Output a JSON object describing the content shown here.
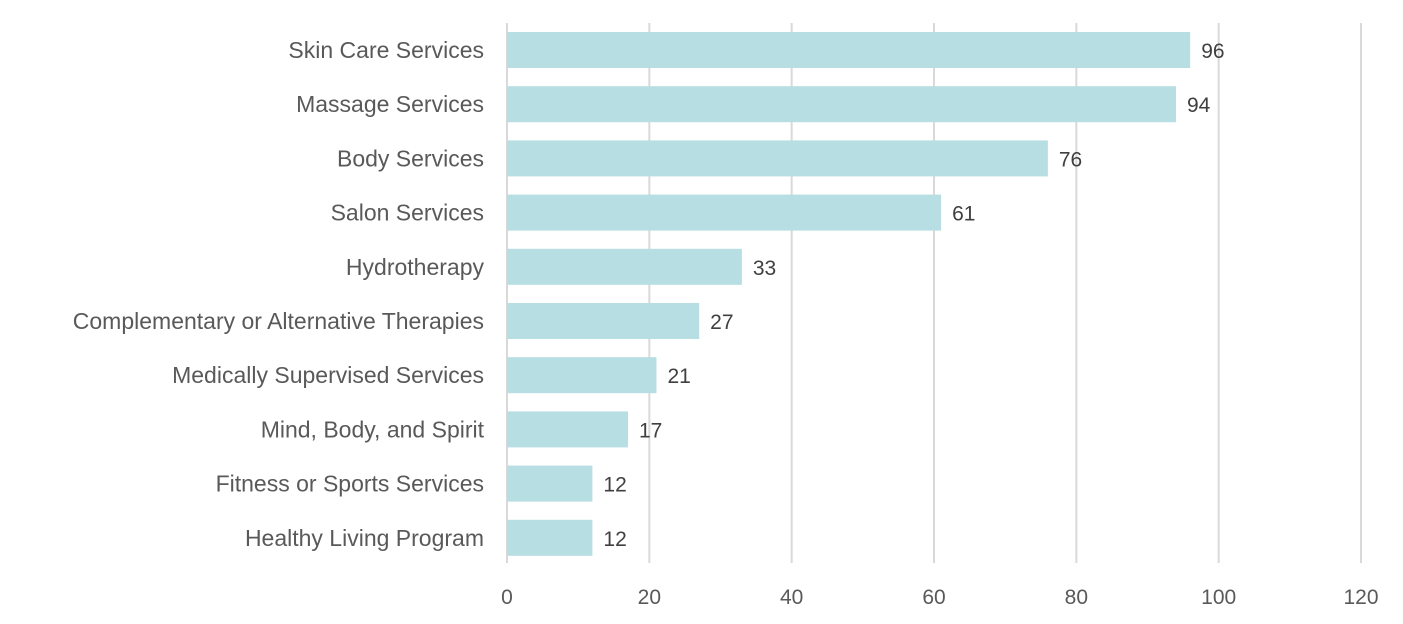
{
  "chart_data": {
    "type": "bar",
    "orientation": "horizontal",
    "title": "",
    "xlabel": "",
    "ylabel": "",
    "categories": [
      "Skin Care Services",
      "Massage Services",
      "Body Services",
      "Salon Services",
      "Hydrotherapy",
      "Complementary or Alternative Therapies",
      "Medically Supervised Services",
      "Mind, Body, and Spirit",
      "Fitness or Sports Services",
      "Healthy Living Program"
    ],
    "values": [
      96,
      94,
      76,
      61,
      33,
      27,
      21,
      17,
      12,
      12
    ],
    "xlim": [
      0,
      120
    ],
    "x_ticks": [
      0,
      20,
      40,
      60,
      80,
      100,
      120
    ],
    "grid": "vertical",
    "legend": "none",
    "data_labels": true,
    "bar_color": "#b7dee2",
    "grid_color": "#d9d9d9",
    "label_color": "#595959",
    "data_label_color": "#404040"
  }
}
